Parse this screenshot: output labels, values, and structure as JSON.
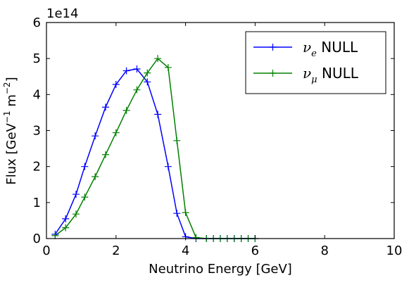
{
  "chart_data": {
    "type": "line",
    "xlabel": "Neutrino Energy [GeV]",
    "ylabel": "Flux [GeV",
    "ylabel_exp": "−1",
    "ylabel_unit": "m",
    "ylabel_unit_exp": "−2",
    "ylabel_close": "]",
    "y_offset_text": "1e14",
    "xlim": [
      0,
      10
    ],
    "ylim": [
      0,
      6
    ],
    "x_ticks": [
      "0",
      "2",
      "4",
      "6",
      "8",
      "10"
    ],
    "y_ticks": [
      "0",
      "1",
      "2",
      "3",
      "4",
      "5",
      "6"
    ],
    "grid": false,
    "legend_position": "top-right",
    "series": [
      {
        "name": "ν_e NULL",
        "legend_symbol": "ν",
        "legend_sub": "e",
        "legend_suffix": "NULL",
        "color": "#0000ff",
        "x": [
          0.25,
          0.55,
          0.85,
          1.1,
          1.4,
          1.7,
          2.0,
          2.3,
          2.6,
          2.9,
          3.2,
          3.5,
          3.75,
          4.0,
          4.3,
          4.6,
          4.8,
          5.0,
          5.2,
          5.4,
          5.6,
          5.8,
          6.0
        ],
        "y": [
          0.12,
          0.55,
          1.23,
          2.0,
          2.85,
          3.65,
          4.28,
          4.66,
          4.71,
          4.35,
          3.45,
          2.0,
          0.7,
          0.05,
          0.0,
          0.0,
          0.0,
          0.0,
          0.0,
          0.0,
          0.0,
          0.0,
          0.0
        ]
      },
      {
        "name": "ν_μ NULL",
        "legend_symbol": "ν",
        "legend_sub": "μ",
        "legend_suffix": "NULL",
        "color": "#008000",
        "x": [
          0.25,
          0.55,
          0.85,
          1.1,
          1.4,
          1.7,
          2.0,
          2.3,
          2.6,
          2.9,
          3.2,
          3.5,
          3.75,
          4.0,
          4.3,
          4.6,
          4.8,
          5.0,
          5.2,
          5.4,
          5.6,
          5.8,
          6.0
        ],
        "y": [
          0.08,
          0.3,
          0.68,
          1.15,
          1.72,
          2.33,
          2.94,
          3.56,
          4.13,
          4.6,
          5.0,
          4.75,
          2.72,
          0.72,
          0.03,
          0.0,
          0.0,
          0.0,
          0.0,
          0.0,
          0.0,
          0.0,
          0.0
        ]
      }
    ]
  }
}
